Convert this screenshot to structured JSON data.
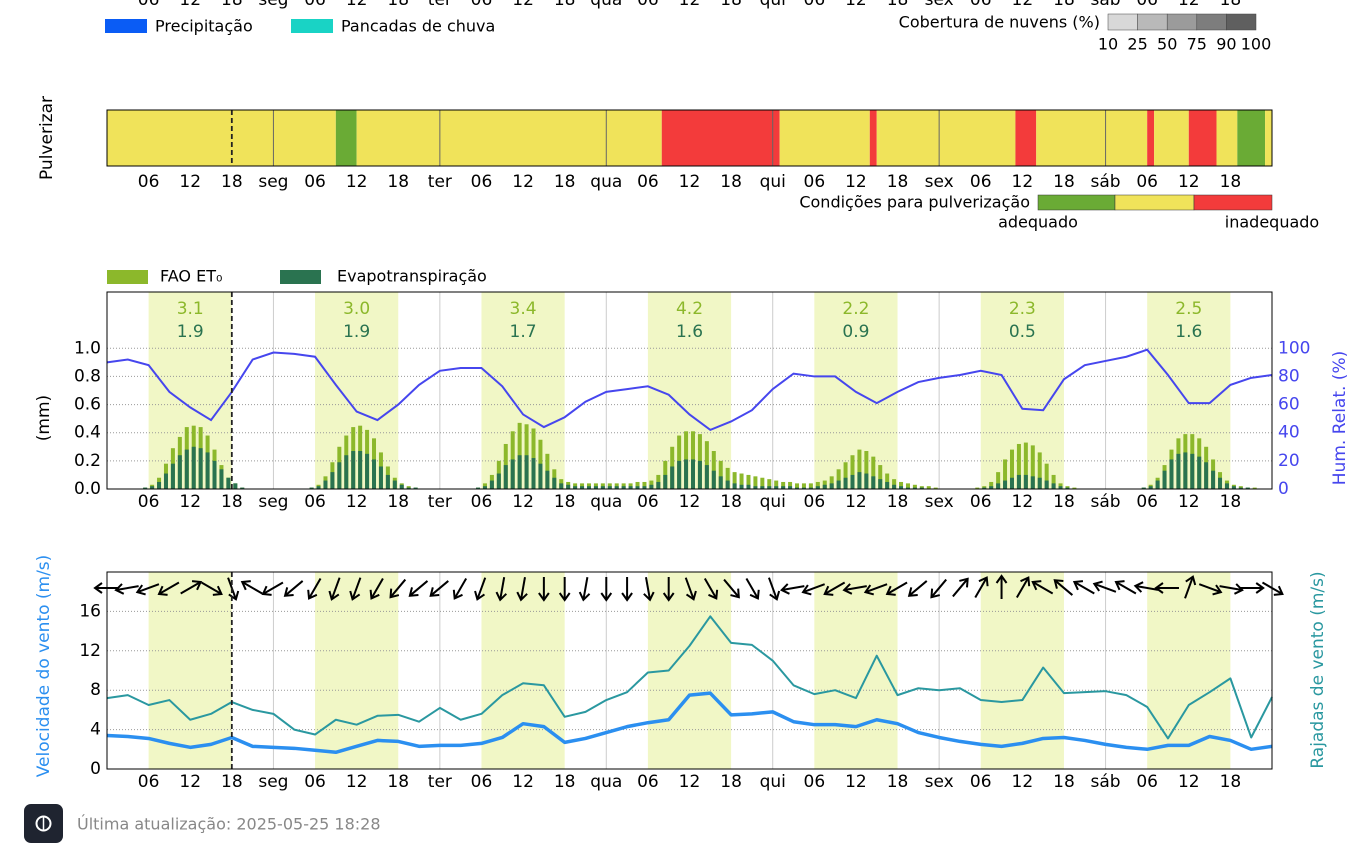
{
  "chart_data": [
    {
      "type": "legend",
      "series": [
        {
          "name": "Precipitação",
          "color": "#0a5cf5"
        },
        {
          "name": "Pancadas de chuva",
          "color": "#19d3c5"
        }
      ],
      "cloud_cover": {
        "title": "Cobertura de nuvens (%)",
        "levels": [
          10,
          25,
          50,
          75,
          90,
          100
        ],
        "colors": [
          "#d8d8d8",
          "#b9b9b9",
          "#9b9b9b",
          "#7d7d7d",
          "#5f5f5f"
        ]
      },
      "xlim": [
        0,
        168
      ],
      "now": 18,
      "xticks": [
        {
          "value": 6,
          "label": "06"
        },
        12,
        18,
        {
          "value": 24,
          "label": "seg"
        },
        {
          "value": 30,
          "label": "06"
        },
        {
          "value": 36,
          "label": "12"
        },
        {
          "value": 42,
          "label": "18"
        },
        {
          "value": 48,
          "label": "ter"
        },
        {
          "value": 54,
          "label": "06"
        },
        {
          "value": 60,
          "label": "12"
        },
        {
          "value": 66,
          "label": "18"
        },
        {
          "value": 72,
          "label": "qua"
        },
        {
          "value": 78,
          "label": "06"
        },
        {
          "value": 84,
          "label": "12"
        },
        {
          "value": 90,
          "label": "18"
        },
        {
          "value": 96,
          "label": "qui"
        },
        {
          "value": 102,
          "label": "06"
        },
        {
          "value": 108,
          "label": "12"
        },
        {
          "value": 114,
          "label": "18"
        },
        {
          "value": 120,
          "label": "sex"
        },
        {
          "value": 126,
          "label": "06"
        },
        {
          "value": 132,
          "label": "12"
        },
        {
          "value": 138,
          "label": "18"
        },
        {
          "value": 144,
          "label": "sáb"
        },
        {
          "value": 150,
          "label": "06"
        },
        {
          "value": 156,
          "label": "12"
        },
        {
          "value": 162,
          "label": "18"
        }
      ]
    },
    {
      "type": "timeline",
      "ylabel": "Pulverizar",
      "legend_title": "Condições para pulverização",
      "legend_labels": [
        "adequado",
        "inadequado"
      ],
      "colors": [
        "#6aab35",
        "#f0e35a",
        "#f33b3b"
      ],
      "segments": [
        {
          "start": 0,
          "end": 33,
          "level": 1
        },
        {
          "start": 33,
          "end": 36,
          "level": 0
        },
        {
          "start": 36,
          "end": 80,
          "level": 1
        },
        {
          "start": 80,
          "end": 97,
          "level": 2
        },
        {
          "start": 97,
          "end": 110,
          "level": 1
        },
        {
          "start": 110,
          "end": 111,
          "level": 2
        },
        {
          "start": 111,
          "end": 131,
          "level": 1
        },
        {
          "start": 131,
          "end": 134,
          "level": 2
        },
        {
          "start": 134,
          "end": 150,
          "level": 1
        },
        {
          "start": 150,
          "end": 151,
          "level": 2
        },
        {
          "start": 151,
          "end": 156,
          "level": 1
        },
        {
          "start": 156,
          "end": 160,
          "level": 2
        },
        {
          "start": 160,
          "end": 163,
          "level": 1
        },
        {
          "start": 163,
          "end": 167,
          "level": 0
        },
        {
          "start": 167,
          "end": 168,
          "level": 1
        }
      ]
    },
    {
      "type": "combo",
      "ylabel": "(mm)",
      "y2label": "Hum. Relat. (%)",
      "ylim": [
        0,
        1.4
      ],
      "yticks": [
        {
          "value": 0,
          "label": "0.0"
        },
        {
          "value": 0.2,
          "label": "0.2"
        },
        {
          "value": 0.4,
          "label": "0.4"
        },
        {
          "value": 0.6,
          "label": "0.6"
        },
        {
          "value": 0.8,
          "label": "0.8"
        },
        {
          "value": 1,
          "label": "1.0"
        }
      ],
      "y2lim": [
        0,
        140
      ],
      "y2ticks": [
        0,
        20,
        40,
        60,
        80,
        100
      ],
      "grid": true,
      "daylight": [
        [
          6,
          18
        ],
        [
          30,
          42
        ],
        [
          54,
          66
        ],
        [
          78,
          90
        ],
        [
          102,
          114
        ],
        [
          126,
          138
        ],
        [
          150,
          162
        ]
      ],
      "x": [
        0,
        1,
        2,
        3,
        4,
        5,
        6,
        7,
        8,
        9,
        10,
        11,
        12,
        13,
        14,
        15,
        16,
        17,
        18,
        19,
        20,
        21,
        22,
        23,
        24,
        25,
        26,
        27,
        28,
        29,
        30,
        31,
        32,
        33,
        34,
        35,
        36,
        37,
        38,
        39,
        40,
        41,
        42,
        43,
        44,
        45,
        46,
        47,
        48,
        49,
        50,
        51,
        52,
        53,
        54,
        55,
        56,
        57,
        58,
        59,
        60,
        61,
        62,
        63,
        64,
        65,
        66,
        67,
        68,
        69,
        70,
        71,
        72,
        73,
        74,
        75,
        76,
        77,
        78,
        79,
        80,
        81,
        82,
        83,
        84,
        85,
        86,
        87,
        88,
        89,
        90,
        91,
        92,
        93,
        94,
        95,
        96,
        97,
        98,
        99,
        100,
        101,
        102,
        103,
        104,
        105,
        106,
        107,
        108,
        109,
        110,
        111,
        112,
        113,
        114,
        115,
        116,
        117,
        118,
        119,
        120,
        121,
        122,
        123,
        124,
        125,
        126,
        127,
        128,
        129,
        130,
        131,
        132,
        133,
        134,
        135,
        136,
        137,
        138,
        139,
        140,
        141,
        142,
        143,
        144,
        145,
        146,
        147,
        148,
        149,
        150,
        151,
        152,
        153,
        154,
        155,
        156,
        157,
        158,
        159,
        160,
        161,
        162,
        163,
        164,
        165,
        166,
        167
      ],
      "series": [
        {
          "name": "FAO ET₀",
          "color": "#8cb82b",
          "values": [
            0,
            0,
            0,
            0,
            0,
            0.01,
            0.03,
            0.08,
            0.18,
            0.29,
            0.37,
            0.44,
            0.45,
            0.44,
            0.38,
            0.28,
            0.17,
            0.08,
            0.04,
            0.01,
            0,
            0,
            0,
            0,
            0,
            0,
            0,
            0,
            0,
            0.01,
            0.03,
            0.09,
            0.19,
            0.3,
            0.38,
            0.44,
            0.45,
            0.42,
            0.36,
            0.26,
            0.16,
            0.08,
            0.04,
            0.02,
            0.01,
            0,
            0,
            0,
            0,
            0,
            0,
            0,
            0,
            0.01,
            0.04,
            0.1,
            0.2,
            0.32,
            0.41,
            0.47,
            0.46,
            0.43,
            0.35,
            0.25,
            0.14,
            0.07,
            0.05,
            0.04,
            0.04,
            0.04,
            0.04,
            0.04,
            0.04,
            0.04,
            0.04,
            0.04,
            0.05,
            0.05,
            0.06,
            0.1,
            0.2,
            0.3,
            0.38,
            0.41,
            0.41,
            0.39,
            0.34,
            0.27,
            0.2,
            0.15,
            0.12,
            0.11,
            0.1,
            0.09,
            0.08,
            0.07,
            0.06,
            0.05,
            0.05,
            0.04,
            0.04,
            0.04,
            0.05,
            0.06,
            0.09,
            0.14,
            0.19,
            0.24,
            0.28,
            0.27,
            0.23,
            0.17,
            0.11,
            0.07,
            0.05,
            0.04,
            0.03,
            0.02,
            0.02,
            0.01,
            0,
            0,
            0,
            0,
            0,
            0.01,
            0.02,
            0.05,
            0.12,
            0.21,
            0.28,
            0.32,
            0.33,
            0.31,
            0.26,
            0.18,
            0.1,
            0.04,
            0.02,
            0.01,
            0,
            0,
            0,
            0,
            0,
            0,
            0,
            0,
            0,
            0.01,
            0.03,
            0.08,
            0.17,
            0.28,
            0.36,
            0.39,
            0.39,
            0.36,
            0.3,
            0.21,
            0.12,
            0.06,
            0.03,
            0.02,
            0.01,
            0.01,
            0,
            0
          ]
        },
        {
          "name": "Evapotranspiração",
          "color": "#2a7350",
          "values": [
            0,
            0,
            0,
            0,
            0,
            0.01,
            0.02,
            0.05,
            0.11,
            0.18,
            0.24,
            0.28,
            0.3,
            0.29,
            0.26,
            0.2,
            0.14,
            0.08,
            0.04,
            0.01,
            0,
            0,
            0,
            0,
            0,
            0,
            0,
            0,
            0,
            0.01,
            0.02,
            0.06,
            0.12,
            0.19,
            0.24,
            0.27,
            0.27,
            0.25,
            0.21,
            0.16,
            0.1,
            0.06,
            0.03,
            0.01,
            0.01,
            0,
            0,
            0,
            0,
            0,
            0,
            0,
            0,
            0.01,
            0.02,
            0.06,
            0.11,
            0.17,
            0.21,
            0.24,
            0.24,
            0.22,
            0.18,
            0.13,
            0.08,
            0.04,
            0.03,
            0.02,
            0.02,
            0.02,
            0.02,
            0.02,
            0.02,
            0.02,
            0.02,
            0.02,
            0.02,
            0.02,
            0.03,
            0.05,
            0.1,
            0.16,
            0.2,
            0.21,
            0.21,
            0.2,
            0.17,
            0.13,
            0.09,
            0.06,
            0.04,
            0.03,
            0.03,
            0.02,
            0.02,
            0.02,
            0.02,
            0.02,
            0.02,
            0.01,
            0.01,
            0.01,
            0.02,
            0.03,
            0.04,
            0.06,
            0.08,
            0.1,
            0.12,
            0.11,
            0.09,
            0.07,
            0.05,
            0.03,
            0.02,
            0.01,
            0.01,
            0.01,
            0,
            0,
            0,
            0,
            0,
            0,
            0,
            0,
            0.01,
            0.02,
            0.04,
            0.06,
            0.08,
            0.1,
            0.1,
            0.09,
            0.08,
            0.06,
            0.04,
            0.02,
            0.01,
            0,
            0,
            0,
            0,
            0,
            0,
            0,
            0,
            0,
            0,
            0.01,
            0.02,
            0.06,
            0.13,
            0.21,
            0.25,
            0.26,
            0.25,
            0.23,
            0.19,
            0.13,
            0.08,
            0.04,
            0.02,
            0.01,
            0.01,
            0,
            0,
            0
          ]
        }
      ],
      "humidity": {
        "color": "#4646ee",
        "axis": "y2",
        "x": [
          0,
          3,
          6,
          9,
          12,
          15,
          18,
          21,
          24,
          27,
          30,
          33,
          36,
          39,
          42,
          45,
          48,
          51,
          54,
          57,
          60,
          63,
          66,
          69,
          72,
          75,
          78,
          81,
          84,
          87,
          90,
          93,
          96,
          99,
          102,
          105,
          108,
          111,
          114,
          117,
          120,
          123,
          126,
          129,
          132,
          135,
          138,
          141,
          144,
          147,
          150,
          153,
          156,
          159,
          162,
          165,
          168
        ],
        "values": [
          90,
          92,
          88,
          69,
          58,
          49,
          69,
          92,
          97,
          96,
          94,
          74,
          55,
          49,
          60,
          74,
          84,
          86,
          86,
          73,
          53,
          44,
          51,
          62,
          69,
          71,
          73,
          67,
          53,
          42,
          48,
          56,
          71,
          82,
          80,
          80,
          69,
          61,
          69,
          76,
          79,
          81,
          84,
          81,
          57,
          56,
          78,
          88,
          91,
          94,
          99,
          81,
          61,
          61,
          74,
          79,
          81
        ]
      },
      "daily_totals": {
        "x": [
          12,
          36,
          60,
          84,
          108,
          132,
          156
        ],
        "fao": {
          "values": [
            3.1,
            3,
            3.4,
            4.2,
            2.2,
            2.3,
            2.5
          ],
          "value_labels": [
            "3.1",
            "3.0",
            "3.4",
            "4.2",
            "2.2",
            "2.3",
            "2.5"
          ]
        },
        "et": {
          "values": [
            1.9,
            1.9,
            1.7,
            1.6,
            0.9,
            0.5,
            1.6
          ],
          "value_labels": [
            "1.9",
            "1.9",
            "1.7",
            "1.6",
            "0.9",
            "0.5",
            "1.6"
          ]
        }
      }
    },
    {
      "type": "line",
      "ylabel": "Velocidade do vento (m/s)",
      "y2label": "Rajadas de vento (m/s)",
      "ylim": [
        0,
        20
      ],
      "yticks": [
        0,
        4,
        8,
        12,
        16
      ],
      "grid": true,
      "x": [
        0,
        3,
        6,
        9,
        12,
        15,
        18,
        21,
        24,
        27,
        30,
        33,
        36,
        39,
        42,
        45,
        48,
        51,
        54,
        57,
        60,
        63,
        66,
        69,
        72,
        75,
        78,
        81,
        84,
        87,
        90,
        93,
        96,
        99,
        102,
        105,
        108,
        111,
        114,
        117,
        120,
        123,
        126,
        129,
        132,
        135,
        138,
        141,
        144,
        147,
        150,
        153,
        156,
        159,
        162,
        165,
        168
      ],
      "series": [
        {
          "color": "#2a98a0",
          "width": 2,
          "values": [
            7.2,
            7.5,
            6.5,
            7,
            5,
            5.6,
            6.8,
            6,
            5.6,
            4,
            3.5,
            5,
            4.5,
            5.4,
            5.5,
            4.8,
            6.2,
            5,
            5.6,
            7.5,
            8.7,
            8.5,
            5.3,
            5.8,
            7,
            7.8,
            9.8,
            10,
            12.5,
            15.5,
            12.8,
            12.6,
            11,
            8.5,
            7.6,
            8,
            7.2,
            11.5,
            7.5,
            8.2,
            8,
            8.2,
            7,
            6.8,
            7,
            10.3,
            7.7,
            7.8,
            7.9,
            7.5,
            6.3,
            3.1,
            6.5,
            7.8,
            9.2,
            3.2,
            7.3
          ]
        },
        {
          "color": "#2b8ff0",
          "width": 3.5,
          "values": [
            3.4,
            3.3,
            3.1,
            2.6,
            2.2,
            2.5,
            3.2,
            2.3,
            2.2,
            2.1,
            1.9,
            1.7,
            2.3,
            2.9,
            2.8,
            2.3,
            2.4,
            2.4,
            2.6,
            3.2,
            4.6,
            4.3,
            2.7,
            3.1,
            3.7,
            4.3,
            4.7,
            5,
            7.5,
            7.7,
            5.5,
            5.6,
            5.8,
            4.8,
            4.5,
            4.5,
            4.3,
            5,
            4.6,
            3.7,
            3.2,
            2.8,
            2.5,
            2.3,
            2.6,
            3.1,
            3.2,
            2.9,
            2.5,
            2.2,
            2,
            2.4,
            2.4,
            3.3,
            2.9,
            2,
            2.3
          ]
        }
      ],
      "ylabel_color": "#2b8ff0",
      "y2label_color": "#2a98a0",
      "wind_direction": [
        270,
        260,
        250,
        240,
        60,
        120,
        160,
        300,
        240,
        230,
        210,
        200,
        200,
        210,
        220,
        230,
        230,
        210,
        200,
        190,
        190,
        180,
        180,
        190,
        180,
        180,
        170,
        180,
        160,
        150,
        140,
        150,
        160,
        260,
        250,
        240,
        260,
        250,
        240,
        230,
        220,
        40,
        30,
        0,
        30,
        300,
        310,
        300,
        290,
        300,
        280,
        270,
        20,
        110,
        100,
        90,
        120
      ]
    }
  ],
  "footer": {
    "text": "Última atualização: 2025-05-25 18:28"
  }
}
